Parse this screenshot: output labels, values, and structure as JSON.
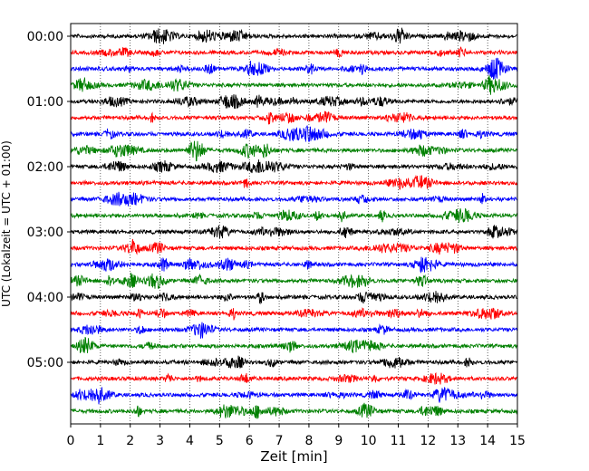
{
  "chart_data": {
    "type": "line",
    "title": "",
    "xlabel": "Zeit  [min]",
    "ylabel": "UTC (Lokalzeit = UTC + 01:00)",
    "xlim": [
      0,
      15
    ],
    "x_ticks": [
      0,
      1,
      2,
      3,
      4,
      5,
      6,
      7,
      8,
      9,
      10,
      11,
      12,
      13,
      14,
      15
    ],
    "x_tick_labels": [
      "0",
      "1",
      "2",
      "3",
      "4",
      "5",
      "6",
      "7",
      "8",
      "9",
      "10",
      "11",
      "12",
      "13",
      "14",
      "15"
    ],
    "y_tick_labels": [
      "00:00",
      "01:00",
      "02:00",
      "03:00",
      "04:00",
      "05:00"
    ],
    "trace_interval_min": 15,
    "trace_count": 24,
    "trace_colors": [
      "#000000",
      "#ff0000",
      "#0000ff",
      "#008000"
    ],
    "grid": "vertical dotted lines at each minute",
    "legend": "none"
  }
}
